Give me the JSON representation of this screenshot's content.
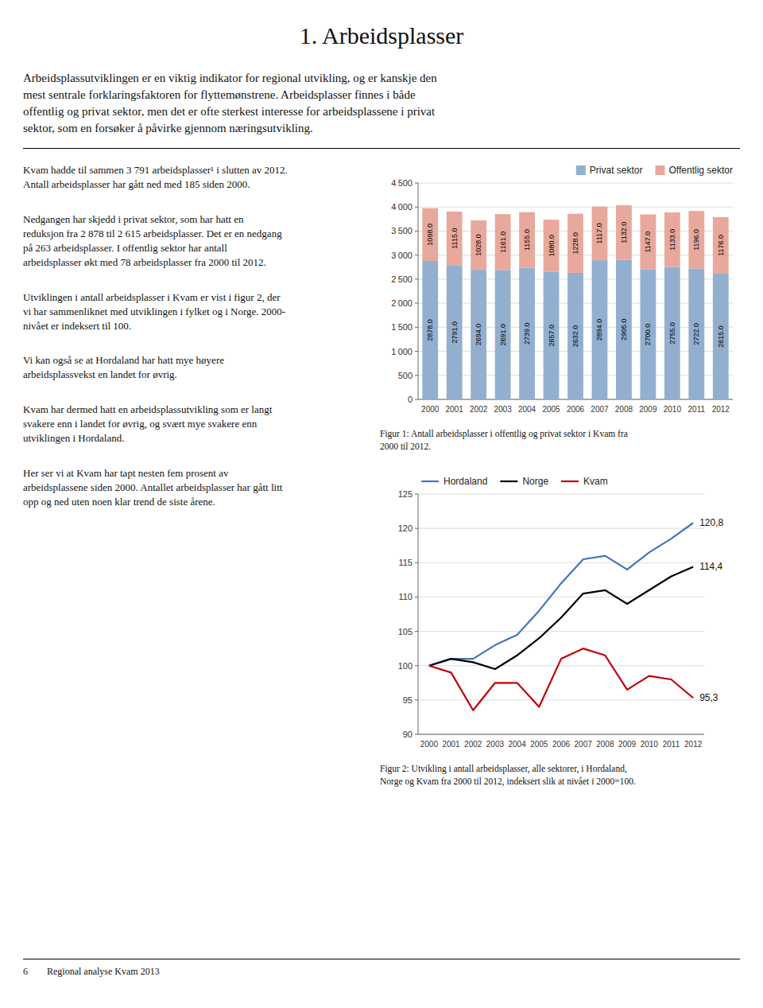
{
  "title": "1.  Arbeidsplasser",
  "intro": "Arbeidsplassutviklingen er en viktig indikator for regional utvikling, og er kanskje den\nmest sentrale forklaringsfaktoren for flyttemønstrene. Arbeidsplasser finnes i både\noffentlig og privat sektor, men det er ofte sterkest interesse for arbeidsplassene i privat\nsektor, som en forsøker å påvirke gjennom næringsutvikling.",
  "paragraphs": [
    "Kvam hadde til sammen 3 791 arbeidsplasser¹ i slutten av 2012.\nAntall arbeidsplasser har gått ned med 185 siden 2000.",
    "Nedgangen har skjedd i privat sektor, som har hatt en\nreduksjon fra 2 878 til 2 615 arbeidsplasser. Det er en nedgang\npå 263 arbeidsplasser. I offentlig sektor har antall\narbeidsplasser økt med 78 arbeidsplasser fra 2000 til 2012.",
    "Utviklingen i antall arbeidsplasser i Kvam er vist i figur 2, der\nvi har sammenliknet med utviklingen i fylket og i Norge. 2000-\nnivået er indeksert til 100.",
    "Vi kan også se at Hordaland har hatt mye høyere\narbeidsplassvekst en landet for øvrig.",
    "Kvam har dermed hatt en arbeidsplassutvikling som er langt\nsvakere enn i landet for øvrig, og svært mye svakere enn\nutviklingen i Hordaland.",
    "Her ser vi at Kvam har tapt nesten fem prosent av\narbeidsplassene siden 2000. Antallet arbeidsplasser har gått litt\nopp og ned uten noen klar trend de siste årene."
  ],
  "footer": "6        Regional analyse Kvam 2013",
  "chart_data": [
    {
      "type": "bar",
      "stacked": true,
      "caption": "Figur 1: Antall arbeidsplasser i offentlig og privat sektor i Kvam fra\n2000 til 2012.",
      "categories": [
        "2000",
        "2001",
        "2002",
        "2003",
        "2004",
        "2005",
        "2006",
        "2007",
        "2008",
        "2009",
        "2010",
        "2011",
        "2012"
      ],
      "series": [
        {
          "name": "Privat sektor",
          "color": "#92AFCF",
          "values": [
            2878.0,
            2791.0,
            2694.0,
            2691.0,
            2739.0,
            2657.0,
            2632.0,
            2894.0,
            2905.0,
            2700.0,
            2755.0,
            2722.0,
            2615.0
          ],
          "value_labels": [
            "2878.0",
            "2791.0",
            "2694.0",
            "2691.0",
            "2739.0",
            "2657.0",
            "2632.0",
            "2894.0",
            "2905.0",
            "2700.0",
            "2755.0",
            "2722.0",
            "2615.0"
          ]
        },
        {
          "name": "Offentlig sektor",
          "color": "#E8A89C",
          "values": [
            1098.0,
            1115.0,
            1028.0,
            1161.0,
            1155.0,
            1080.0,
            1228.0,
            1117.0,
            1132.0,
            1147.0,
            1133.0,
            1196.0,
            1176.0
          ],
          "value_labels": [
            "1098.0",
            "1115.0",
            "1028.0",
            "1161.0",
            "1155.0",
            "1080.0",
            "1228.0",
            "1117.0",
            "1132.0",
            "1147.0",
            "1133.0",
            "1196.0",
            "1176.0"
          ]
        }
      ],
      "ylim": [
        0,
        4500
      ],
      "yticks": [
        0,
        500,
        {
          "value": 1000,
          "label": "1 000"
        },
        {
          "value": 1500,
          "label": "1 500"
        },
        {
          "value": 2000,
          "label": "2 000"
        },
        {
          "value": 2500,
          "label": "2 500"
        },
        {
          "value": 3000,
          "label": "3 000"
        },
        {
          "value": 3500,
          "label": "3 500"
        },
        {
          "value": 4000,
          "label": "4 000"
        },
        {
          "value": 4500,
          "label": "4 500"
        }
      ],
      "grid": true,
      "legend": "upper right",
      "data_labels": true
    },
    {
      "type": "line",
      "caption": "Figur 2: Utvikling i antall arbeidsplasser, alle sektorer, i Hordaland,\nNorge og Kvam fra 2000 til 2012, indeksert slik at nivået i 2000=100.",
      "categories": [
        "2000",
        "2001",
        "2002",
        "2003",
        "2004",
        "2005",
        "2006",
        "2007",
        "2008",
        "2009",
        "2010",
        "2011",
        "2012"
      ],
      "series": [
        {
          "name": "Hordaland",
          "color": "#4472C4",
          "values": [
            100.0,
            101.0,
            101.0,
            103.0,
            104.5,
            108.0,
            112.0,
            115.5,
            116.0,
            114.0,
            116.5,
            118.5,
            120.8
          ]
        },
        {
          "name": "Norge",
          "color": "#000000",
          "values": [
            100.0,
            101.0,
            100.5,
            99.5,
            101.5,
            104.0,
            107.0,
            110.5,
            111.0,
            109.0,
            111.0,
            113.0,
            114.4
          ]
        },
        {
          "name": "Kvam",
          "color": "#C0000C",
          "values": [
            100.0,
            99.0,
            93.5,
            97.5,
            97.5,
            94.0,
            101.0,
            102.5,
            101.5,
            96.5,
            98.5,
            98.0,
            95.3
          ]
        }
      ],
      "annotations": [
        {
          "text": "120,8",
          "x": "2012",
          "y": 120.8
        },
        {
          "text": "114,4",
          "x": "2012",
          "y": 114.4
        },
        {
          "text": "95,3",
          "x": "2012",
          "y": 95.3
        }
      ],
      "ylim": [
        90,
        125
      ],
      "yticks": [
        90,
        95,
        100,
        105,
        110,
        115,
        120,
        125
      ],
      "grid": true,
      "legend": "upper left"
    }
  ]
}
